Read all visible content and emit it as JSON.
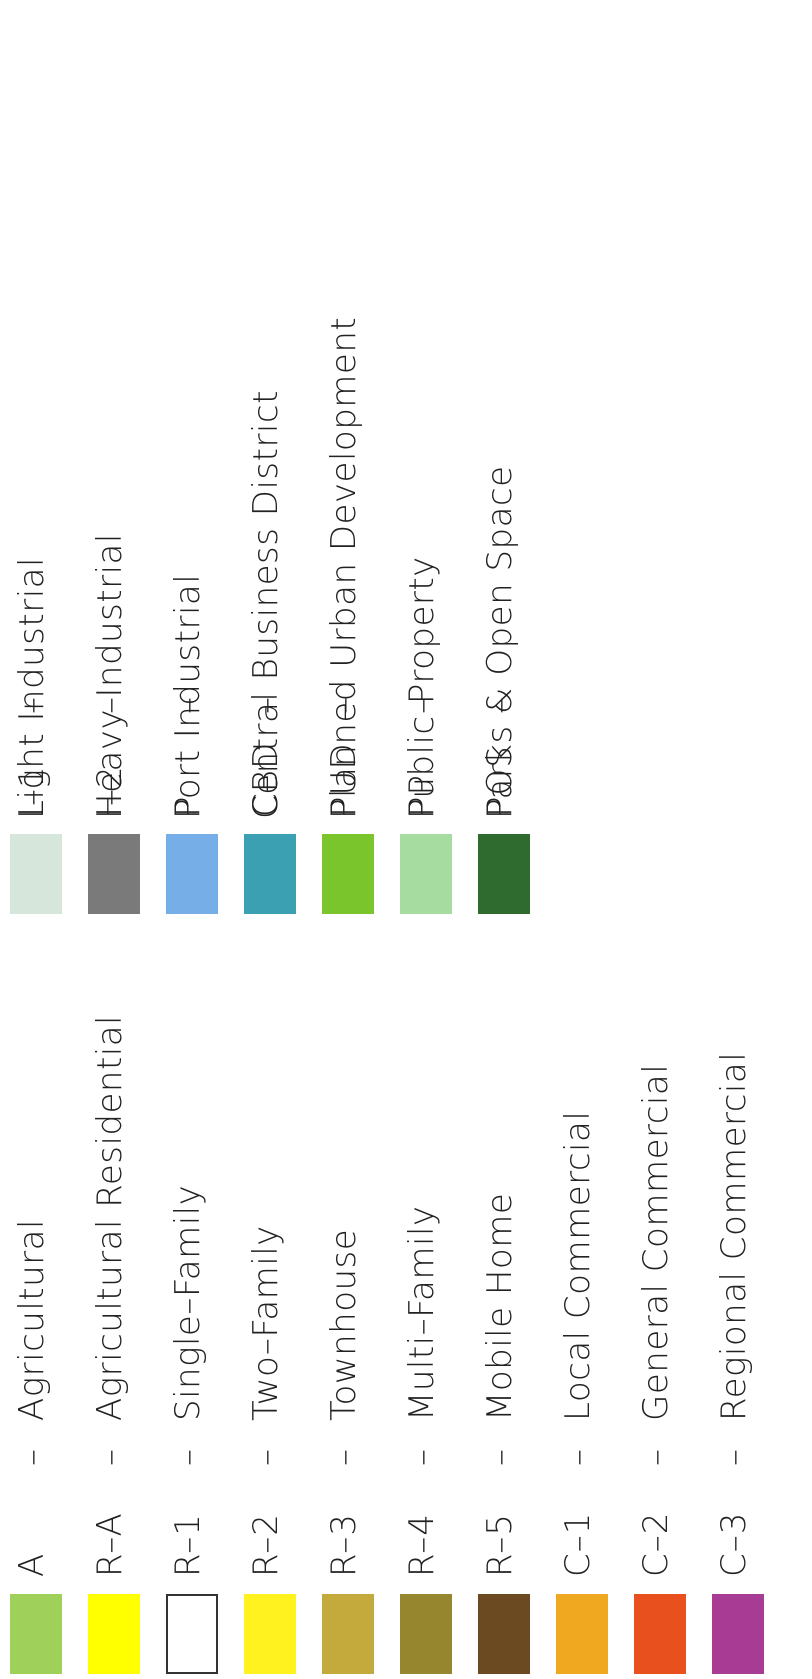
{
  "legend": {
    "left_column": [
      {
        "code": "A",
        "separator": "–",
        "description": "Agricultural",
        "color": "#9fd15a",
        "outlined": false
      },
      {
        "code": "R–A",
        "separator": "–",
        "description": "Agricultural Residential",
        "color": "#ffff00",
        "outlined": false
      },
      {
        "code": "R–1",
        "separator": "–",
        "description": "Single–Family",
        "color": "#ffffff",
        "outlined": true
      },
      {
        "code": "R–2",
        "separator": "–",
        "description": "Two–Family",
        "color": "#fff21f",
        "outlined": false
      },
      {
        "code": "R–3",
        "separator": "–",
        "description": "Townhouse",
        "color": "#c4aa3c",
        "outlined": false
      },
      {
        "code": "R–4",
        "separator": "–",
        "description": "Multi–Family",
        "color": "#96862e",
        "outlined": false
      },
      {
        "code": "R–5",
        "separator": "–",
        "description": "Mobile Home",
        "color": "#6b4a22",
        "outlined": false
      },
      {
        "code": "C–1",
        "separator": "–",
        "description": "Local Commercial",
        "color": "#f0a820",
        "outlined": false
      },
      {
        "code": "C–2",
        "separator": "–",
        "description": "General Commercial",
        "color": "#e8501e",
        "outlined": false
      },
      {
        "code": "C–3",
        "separator": "–",
        "description": "Regional Commercial",
        "color": "#a83c94",
        "outlined": false
      }
    ],
    "right_column": [
      {
        "code": "I–1",
        "separator": "–",
        "description": "Light Industrial",
        "color": "#d6e6da",
        "outlined": false
      },
      {
        "code": "I–2",
        "separator": "–",
        "description": "Heavy Industrial",
        "color": "#7a7a7a",
        "outlined": false
      },
      {
        "code": "P",
        "separator": "–",
        "description": "Port Industrial",
        "color": "#76aee8",
        "outlined": false
      },
      {
        "code": "CBD",
        "separator": "–",
        "description": "Central Business District",
        "color": "#3aa0b2",
        "outlined": false
      },
      {
        "code": "PUD",
        "separator": "–",
        "description": "Planned Urban Development",
        "color": "#7ac52c",
        "outlined": false
      },
      {
        "code": "PP",
        "separator": "–",
        "description": "Public Property",
        "color": "#a6dca0",
        "outlined": false
      },
      {
        "code": "POS",
        "separator": "–",
        "description": "Parks & Open Space",
        "color": "#2f6a2e",
        "outlined": false
      }
    ]
  }
}
